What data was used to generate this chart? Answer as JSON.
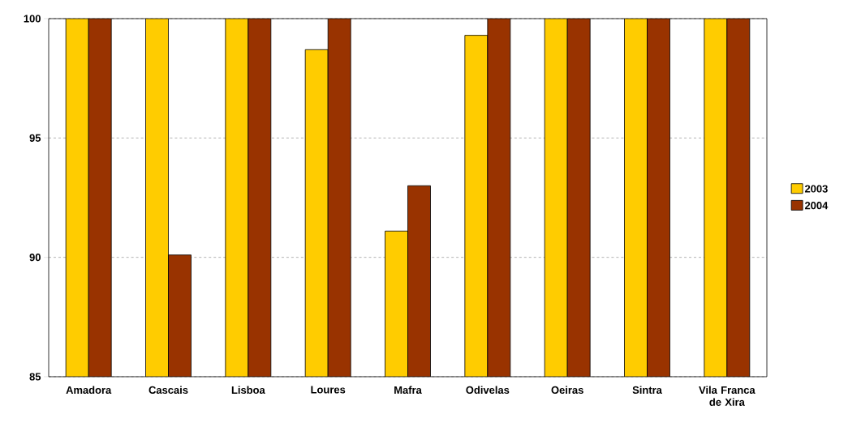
{
  "chart_data": {
    "type": "bar",
    "categories": [
      "Amadora",
      "Cascais",
      "Lisboa",
      "Loures",
      "Mafra",
      "Odivelas",
      "Oeiras",
      "Sintra",
      "Vila Franca de Xira"
    ],
    "series": [
      {
        "name": "2003",
        "color": "#ffcc00",
        "values": [
          100,
          100,
          100,
          98.7,
          91.1,
          99.3,
          100,
          100,
          100
        ]
      },
      {
        "name": "2004",
        "color": "#993300",
        "values": [
          100,
          90.1,
          100,
          100,
          93.0,
          100,
          100,
          100,
          100
        ]
      }
    ],
    "ylim": [
      85,
      100
    ],
    "yticks": [
      85,
      90,
      95,
      100
    ],
    "grid": "y",
    "legend": "right"
  }
}
